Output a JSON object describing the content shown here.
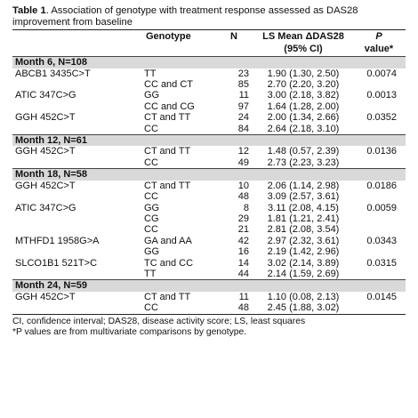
{
  "caption": {
    "label": "Table 1",
    "text": ". Association of genotype with treatment response assessed as DAS28 improvement from baseline"
  },
  "headers": {
    "genotype": "Genotype",
    "n": "N",
    "ls_line1": "LS Mean ΔDAS28",
    "ls_line2": "(95% CI)",
    "p_line1": "P",
    "p_line2": "value*"
  },
  "sections": [
    {
      "title": "Month 6, N=108",
      "rows": [
        {
          "gene": "ABCB1 3435C>T",
          "genotype": "TT",
          "n": "23",
          "ls": "1.90 (1.30, 2.50)",
          "p": "0.0074"
        },
        {
          "gene": "",
          "genotype": "CC and CT",
          "n": "85",
          "ls": "2.70 (2.20, 3.20)",
          "p": ""
        },
        {
          "gene": "ATIC 347C>G",
          "genotype": "GG",
          "n": "11",
          "ls": "3.00 (2.18, 3.82)",
          "p": "0.0013"
        },
        {
          "gene": "",
          "genotype": "CC and CG",
          "n": "97",
          "ls": "1.64 (1.28, 2.00)",
          "p": ""
        },
        {
          "gene": "GGH 452C>T",
          "genotype": "CT and TT",
          "n": "24",
          "ls": "2.00 (1.34, 2.66)",
          "p": "0.0352"
        },
        {
          "gene": "",
          "genotype": "CC",
          "n": "84",
          "ls": "2.64 (2.18, 3.10)",
          "p": ""
        }
      ]
    },
    {
      "title": "Month 12, N=61",
      "rows": [
        {
          "gene": "GGH 452C>T",
          "genotype": "CT and TT",
          "n": "12",
          "ls": "1.48 (0.57, 2.39)",
          "p": "0.0136"
        },
        {
          "gene": "",
          "genotype": "CC",
          "n": "49",
          "ls": "2.73 (2.23, 3.23)",
          "p": ""
        }
      ]
    },
    {
      "title": "Month 18, N=58",
      "rows": [
        {
          "gene": "GGH 452C>T",
          "genotype": "CT and TT",
          "n": "10",
          "ls": "2.06 (1.14, 2.98)",
          "p": "0.0186"
        },
        {
          "gene": "",
          "genotype": "CC",
          "n": "48",
          "ls": "3.09 (2.57, 3.61)",
          "p": ""
        },
        {
          "gene": "ATIC 347C>G",
          "genotype": "GG",
          "n": "8",
          "ls": "3.11 (2.08, 4.15)",
          "p": "0.0059"
        },
        {
          "gene": "",
          "genotype": "CG",
          "n": "29",
          "ls": "1.81 (1.21, 2.41)",
          "p": ""
        },
        {
          "gene": "",
          "genotype": "CC",
          "n": "21",
          "ls": "2.81 (2.08, 3.54)",
          "p": ""
        },
        {
          "gene": "MTHFD1 1958G>A",
          "genotype": "GA and AA",
          "n": "42",
          "ls": "2.97 (2.32, 3.61)",
          "p": "0.0343"
        },
        {
          "gene": "",
          "genotype": "GG",
          "n": "16",
          "ls": "2.19 (1.42, 2.96)",
          "p": ""
        },
        {
          "gene": "SLCO1B1 521T>C",
          "genotype": "TC and CC",
          "n": "14",
          "ls": "3.02 (2.14, 3.89)",
          "p": "0.0315"
        },
        {
          "gene": "",
          "genotype": "TT",
          "n": "44",
          "ls": "2.14 (1.59, 2.69)",
          "p": ""
        }
      ]
    },
    {
      "title": "Month 24, N=59",
      "rows": [
        {
          "gene": "GGH 452C>T",
          "genotype": "CT and TT",
          "n": "11",
          "ls": "1.10 (0.08, 2.13)",
          "p": "0.0145"
        },
        {
          "gene": "",
          "genotype": "CC",
          "n": "48",
          "ls": "2.45 (1.88, 3.02)",
          "p": ""
        }
      ]
    }
  ],
  "footnotes": {
    "line1": "CI, confidence interval; DAS28, disease activity score; LS, least squares",
    "line2": "*P values are from multivariate comparisons by genotype."
  },
  "colors": {
    "section_background": "#d9d9d9",
    "rule": "#222222"
  }
}
